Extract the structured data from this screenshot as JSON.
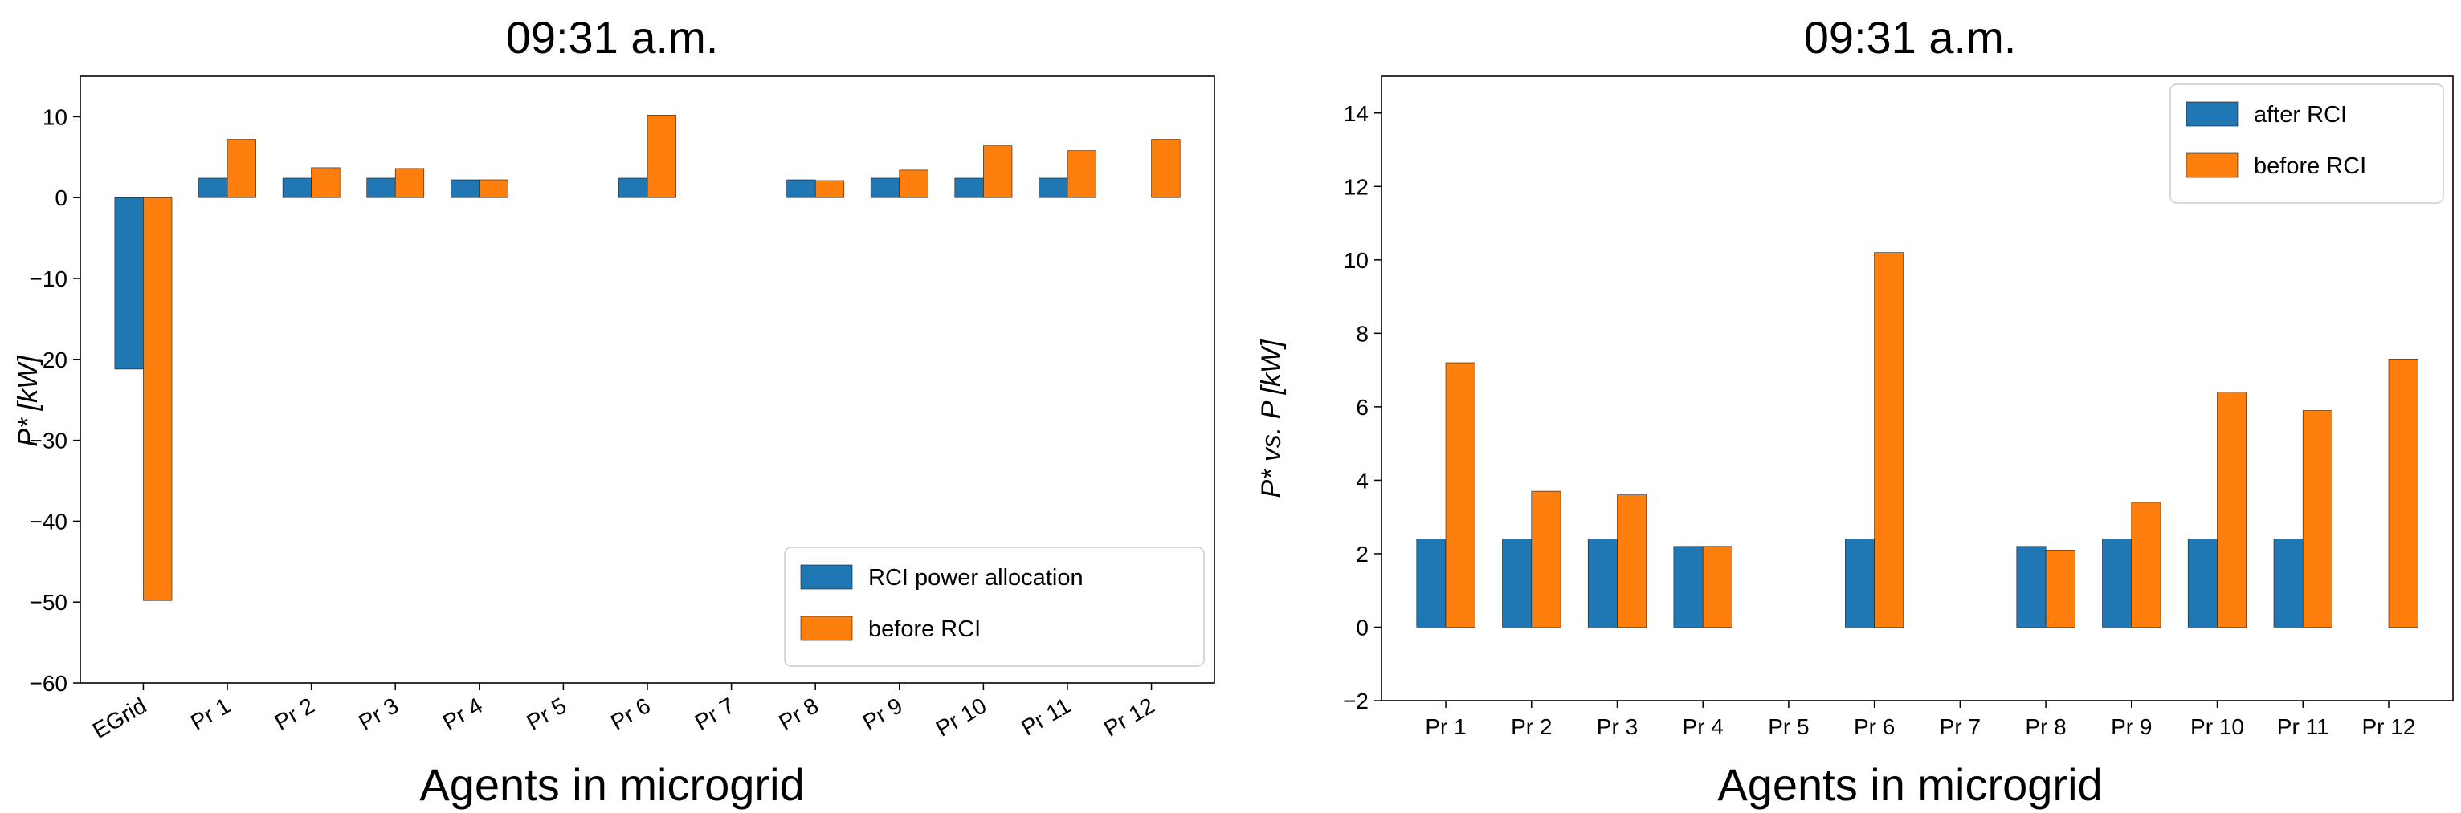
{
  "chart_data": [
    {
      "type": "bar",
      "title": "09:31 a.m.",
      "xlabel": "Agents in microgrid",
      "ylabel": "P* [kW]",
      "categories": [
        "EGrid",
        "Pr 1",
        "Pr 2",
        "Pr 3",
        "Pr 4",
        "Pr 5",
        "Pr 6",
        "Pr 7",
        "Pr 8",
        "Pr 9",
        "Pr 10",
        "Pr 11",
        "Pr 12"
      ],
      "series": [
        {
          "name": "RCI power allocation",
          "color": "#1f77b4",
          "values": [
            -21.2,
            2.4,
            2.4,
            2.4,
            2.2,
            0,
            2.4,
            0,
            2.2,
            2.4,
            2.4,
            2.4,
            0
          ]
        },
        {
          "name": "before RCI",
          "color": "#ff7f0e",
          "values": [
            -49.8,
            7.2,
            3.7,
            3.6,
            2.2,
            0,
            10.2,
            0,
            2.1,
            3.4,
            6.4,
            5.8,
            7.2
          ]
        }
      ],
      "ylim": [
        -60,
        15
      ],
      "yticks": [
        10,
        0,
        -10,
        -20,
        -30,
        -40,
        -50,
        -60
      ],
      "ytick_labels": [
        "10",
        "0",
        "−10",
        "−20",
        "−30",
        "−40",
        "−50",
        "−60"
      ],
      "legend": "lower-right",
      "grid": false,
      "rotated_xticks": true
    },
    {
      "type": "bar",
      "title": "09:31 a.m.",
      "xlabel": "Agents in microgrid",
      "ylabel": "P* vs. P [kW]",
      "categories": [
        "Pr 1",
        "Pr 2",
        "Pr 3",
        "Pr 4",
        "Pr 5",
        "Pr 6",
        "Pr 7",
        "Pr 8",
        "Pr 9",
        "Pr 10",
        "Pr 11",
        "Pr 12"
      ],
      "series": [
        {
          "name": "after RCI",
          "color": "#1f77b4",
          "values": [
            2.4,
            2.4,
            2.4,
            2.2,
            0,
            2.4,
            0,
            2.2,
            2.4,
            2.4,
            2.4,
            0
          ]
        },
        {
          "name": "before RCI",
          "color": "#ff7f0e",
          "values": [
            7.2,
            3.7,
            3.6,
            2.2,
            0,
            10.2,
            0,
            2.1,
            3.4,
            6.4,
            5.9,
            7.3
          ]
        }
      ],
      "ylim": [
        -2,
        15
      ],
      "yticks": [
        14,
        12,
        10,
        8,
        6,
        4,
        2,
        0,
        -2
      ],
      "ytick_labels": [
        "14",
        "12",
        "10",
        "8",
        "6",
        "4",
        "2",
        "0",
        "−2"
      ],
      "legend": "top-right",
      "grid": false,
      "rotated_xticks": false
    }
  ]
}
